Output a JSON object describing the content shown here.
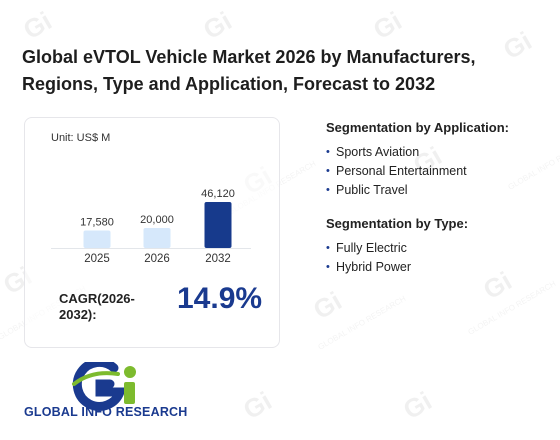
{
  "header": {
    "title": "Global eVTOL Vehicle Market 2026 by Manufacturers, Regions, Type and Application, Forecast to 2032"
  },
  "card": {
    "unit": "Unit: US$ M",
    "cagr_label": "CAGR(2026-2032):",
    "cagr_value": "14.9%"
  },
  "chart_data": {
    "type": "bar",
    "categories": [
      "2025",
      "2026",
      "2032"
    ],
    "values": [
      17580,
      20000,
      46120
    ],
    "value_labels": [
      "17,580",
      "20,000",
      "46,120"
    ],
    "colors": [
      "#d6e8fb",
      "#d6e8fb",
      "#173a8c"
    ],
    "title": "",
    "xlabel": "",
    "ylabel": "",
    "unit": "US$ M",
    "ylim": [
      0,
      46120
    ],
    "grid": false,
    "legend": "none"
  },
  "segmentation": {
    "application": {
      "heading": "Segmentation by Application:",
      "items": [
        "Sports Aviation",
        "Personal Entertainment",
        "Public Travel"
      ]
    },
    "type": {
      "heading": "Segmentation by Type:",
      "items": [
        "Fully Electric",
        "Hybrid Power"
      ]
    }
  },
  "brand": {
    "name": "GLOBAL INFO RESEARCH",
    "watermark": "GLOBAL INFO RESEARCH",
    "logo_icon": "gi-logo-icon",
    "primary_color": "#1a3a8f",
    "accent_color": "#7dbb2e"
  }
}
